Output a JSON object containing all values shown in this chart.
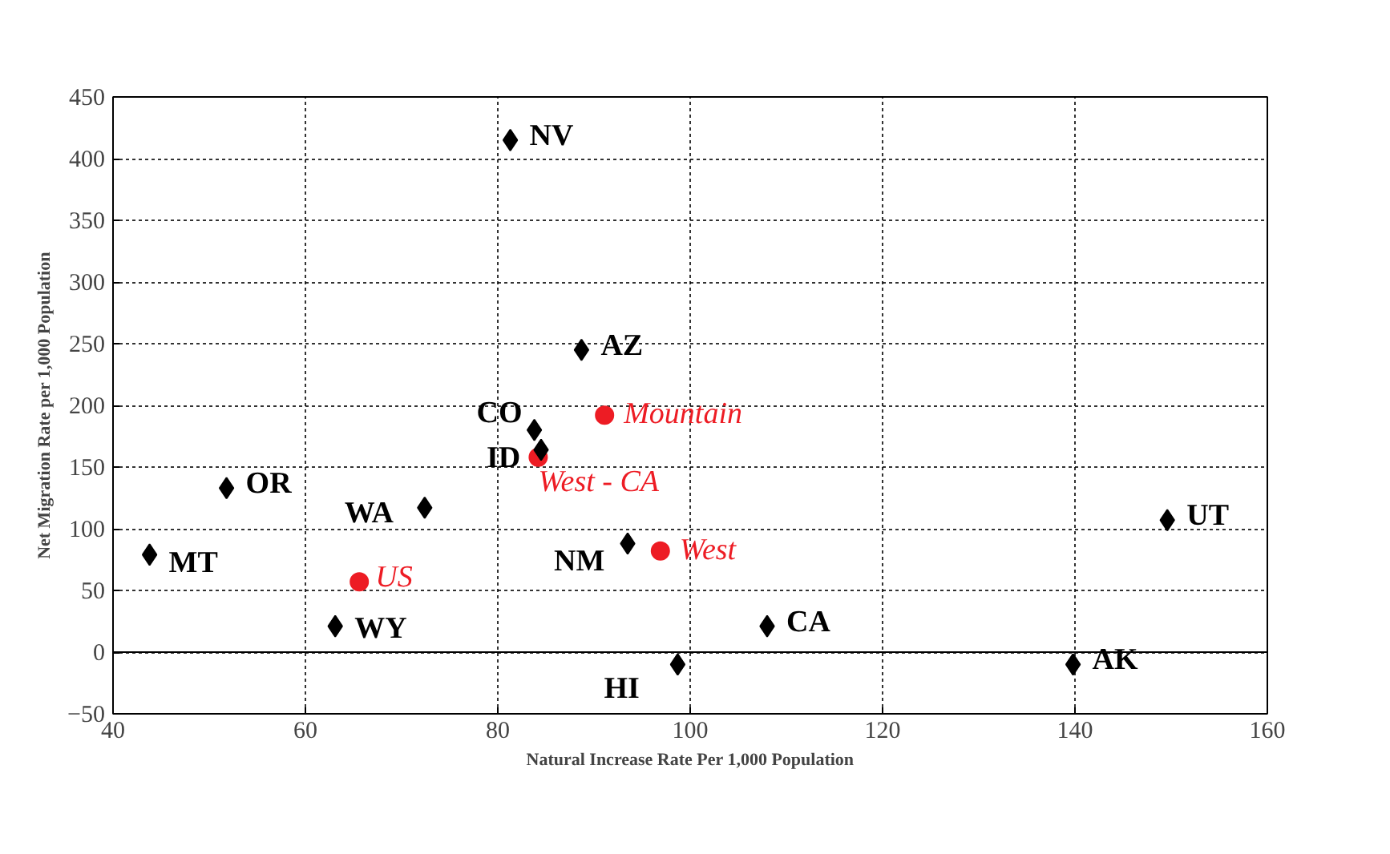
{
  "chart_data": {
    "type": "scatter",
    "xlabel": "Natural Increase Rate Per 1,000 Population",
    "ylabel": "Net Migration Rate per 1,000 Population",
    "xlim": [
      40,
      160
    ],
    "xticks": [
      40,
      60,
      80,
      100,
      120,
      140,
      160
    ],
    "ylim": [
      -50,
      450
    ],
    "yticks": [
      -50,
      0,
      50,
      100,
      150,
      200,
      250,
      300,
      350,
      400,
      450
    ],
    "grid": true,
    "ref_lines": [
      {
        "axis": "y",
        "value": 0,
        "color": "#000000",
        "line_style": "solid"
      }
    ],
    "series": [
      {
        "color": "#000000",
        "marker": "diamond",
        "x": [
          81.3,
          88.7,
          83.8,
          84.5,
          51.8,
          72.4,
          149.6,
          43.8,
          93.5,
          108,
          63.1,
          98.7,
          139.8
        ],
        "values": [
          415,
          245,
          180,
          164,
          133,
          117,
          107,
          79,
          88,
          21,
          21,
          -10,
          -10
        ]
      },
      {
        "color": "#ed1c24",
        "marker": "circle",
        "x": [
          91.1,
          84.2,
          96.9,
          65.6
        ],
        "values": [
          192,
          158,
          82,
          57
        ]
      }
    ],
    "annotations": [
      {
        "text": "NV",
        "x": 81.3,
        "y": 415
      },
      {
        "text": "AZ",
        "x": 88.7,
        "y": 245
      },
      {
        "text": "CO",
        "x": 83.8,
        "y": 180
      },
      {
        "text": "ID",
        "x": 84.5,
        "y": 164
      },
      {
        "text": "OR",
        "x": 51.8,
        "y": 133
      },
      {
        "text": "WA",
        "x": 72.4,
        "y": 117
      },
      {
        "text": "UT",
        "x": 149.6,
        "y": 107
      },
      {
        "text": "MT",
        "x": 43.8,
        "y": 79
      },
      {
        "text": "NM",
        "x": 93.5,
        "y": 88
      },
      {
        "text": "CA",
        "x": 108,
        "y": 21
      },
      {
        "text": "WY",
        "x": 63.1,
        "y": 21
      },
      {
        "text": "HI",
        "x": 98.7,
        "y": -10
      },
      {
        "text": "AK",
        "x": 139.8,
        "y": -10
      },
      {
        "text": "Mountain",
        "x": 91.1,
        "y": 192
      },
      {
        "text": "West - CA",
        "x": 84.2,
        "y": 158
      },
      {
        "text": "West",
        "x": 96.9,
        "y": 82
      },
      {
        "text": "US",
        "x": 65.6,
        "y": 57
      }
    ]
  }
}
